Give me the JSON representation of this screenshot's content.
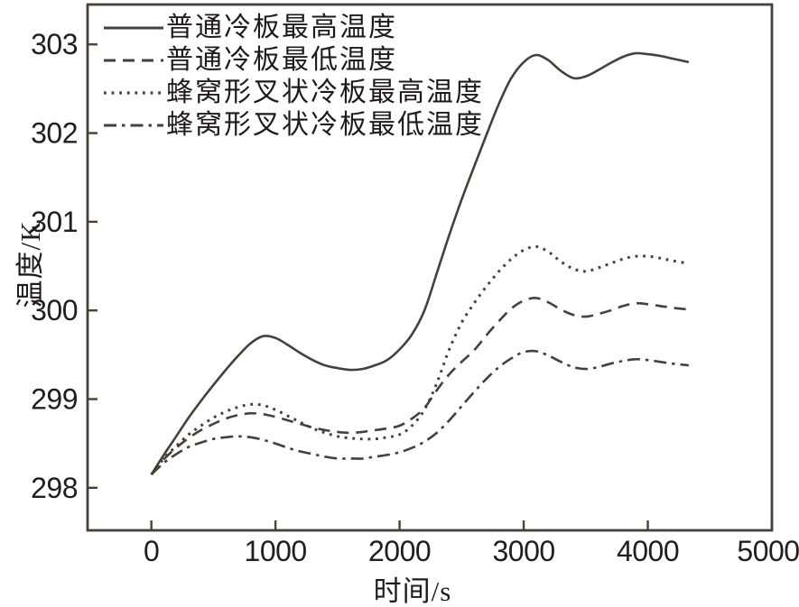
{
  "figure": {
    "background": "#ffffff",
    "line_color": "#474039",
    "text_color": "#221e1b"
  },
  "chart_data": {
    "type": "line",
    "title": "",
    "xlabel": "时间/s",
    "ylabel": "温度/K",
    "xlim": [
      -514,
      5000
    ],
    "ylim": [
      297.52,
      303.45
    ],
    "x_ticks": [
      0,
      1000,
      2000,
      3000,
      4000,
      5000
    ],
    "y_ticks": [
      298,
      299,
      300,
      301,
      302,
      303
    ],
    "grid": false,
    "legend_position": "upper-left",
    "series": [
      {
        "name": "普通冷板最高温度",
        "style": "solid",
        "points": [
          [
            0,
            298.15
          ],
          [
            100,
            298.37
          ],
          [
            200,
            298.58
          ],
          [
            300,
            298.79
          ],
          [
            400,
            298.98
          ],
          [
            500,
            299.16
          ],
          [
            600,
            299.33
          ],
          [
            700,
            299.49
          ],
          [
            800,
            299.63
          ],
          [
            900,
            299.71
          ],
          [
            1000,
            299.69
          ],
          [
            1100,
            299.61
          ],
          [
            1200,
            299.52
          ],
          [
            1300,
            299.44
          ],
          [
            1400,
            299.38
          ],
          [
            1500,
            299.35
          ],
          [
            1600,
            299.33
          ],
          [
            1700,
            299.34
          ],
          [
            1800,
            299.38
          ],
          [
            1900,
            299.44
          ],
          [
            2000,
            299.56
          ],
          [
            2100,
            299.73
          ],
          [
            2200,
            300.0
          ],
          [
            2300,
            300.42
          ],
          [
            2400,
            300.85
          ],
          [
            2500,
            301.25
          ],
          [
            2600,
            301.62
          ],
          [
            2700,
            301.98
          ],
          [
            2800,
            302.33
          ],
          [
            2900,
            302.62
          ],
          [
            3000,
            302.8
          ],
          [
            3100,
            302.88
          ],
          [
            3200,
            302.82
          ],
          [
            3300,
            302.7
          ],
          [
            3400,
            302.62
          ],
          [
            3500,
            302.64
          ],
          [
            3600,
            302.71
          ],
          [
            3700,
            302.79
          ],
          [
            3800,
            302.86
          ],
          [
            3900,
            302.9
          ],
          [
            4000,
            302.89
          ],
          [
            4100,
            302.87
          ],
          [
            4200,
            302.84
          ],
          [
            4330,
            302.8
          ]
        ]
      },
      {
        "name": "普通冷板最低温度",
        "style": "dashed",
        "points": [
          [
            0,
            298.15
          ],
          [
            100,
            298.32
          ],
          [
            200,
            298.45
          ],
          [
            300,
            298.56
          ],
          [
            400,
            298.65
          ],
          [
            500,
            298.72
          ],
          [
            600,
            298.78
          ],
          [
            700,
            298.82
          ],
          [
            800,
            298.84
          ],
          [
            900,
            298.83
          ],
          [
            1000,
            298.8
          ],
          [
            1100,
            298.76
          ],
          [
            1200,
            298.72
          ],
          [
            1300,
            298.68
          ],
          [
            1400,
            298.65
          ],
          [
            1500,
            298.63
          ],
          [
            1600,
            298.62
          ],
          [
            1700,
            298.63
          ],
          [
            1800,
            298.65
          ],
          [
            1900,
            298.67
          ],
          [
            2000,
            298.7
          ],
          [
            2100,
            298.78
          ],
          [
            2200,
            298.9
          ],
          [
            2300,
            299.1
          ],
          [
            2400,
            299.28
          ],
          [
            2500,
            299.42
          ],
          [
            2600,
            299.55
          ],
          [
            2700,
            299.72
          ],
          [
            2800,
            299.88
          ],
          [
            2900,
            300.02
          ],
          [
            3000,
            300.11
          ],
          [
            3100,
            300.14
          ],
          [
            3200,
            300.09
          ],
          [
            3300,
            300.01
          ],
          [
            3400,
            299.95
          ],
          [
            3500,
            299.93
          ],
          [
            3600,
            299.96
          ],
          [
            3700,
            300.0
          ],
          [
            3800,
            300.05
          ],
          [
            3900,
            300.08
          ],
          [
            4000,
            300.07
          ],
          [
            4100,
            300.05
          ],
          [
            4200,
            300.03
          ],
          [
            4330,
            300.01
          ]
        ]
      },
      {
        "name": "蜂窝形叉状冷板最高温度",
        "style": "dotted",
        "points": [
          [
            0,
            298.15
          ],
          [
            100,
            298.33
          ],
          [
            200,
            298.47
          ],
          [
            300,
            298.6
          ],
          [
            400,
            298.7
          ],
          [
            500,
            298.79
          ],
          [
            600,
            298.86
          ],
          [
            700,
            298.91
          ],
          [
            800,
            298.94
          ],
          [
            900,
            298.93
          ],
          [
            1000,
            298.88
          ],
          [
            1100,
            298.81
          ],
          [
            1200,
            298.74
          ],
          [
            1300,
            298.67
          ],
          [
            1400,
            298.62
          ],
          [
            1500,
            298.58
          ],
          [
            1600,
            298.56
          ],
          [
            1700,
            298.55
          ],
          [
            1800,
            298.55
          ],
          [
            1900,
            298.57
          ],
          [
            2000,
            298.6
          ],
          [
            2100,
            298.7
          ],
          [
            2200,
            298.88
          ],
          [
            2300,
            299.18
          ],
          [
            2400,
            299.56
          ],
          [
            2500,
            299.86
          ],
          [
            2600,
            300.08
          ],
          [
            2700,
            300.27
          ],
          [
            2800,
            300.44
          ],
          [
            2900,
            300.58
          ],
          [
            3000,
            300.68
          ],
          [
            3100,
            300.72
          ],
          [
            3200,
            300.66
          ],
          [
            3300,
            300.55
          ],
          [
            3400,
            300.47
          ],
          [
            3500,
            300.44
          ],
          [
            3600,
            300.48
          ],
          [
            3700,
            300.53
          ],
          [
            3800,
            300.58
          ],
          [
            3900,
            300.61
          ],
          [
            4000,
            300.61
          ],
          [
            4100,
            300.59
          ],
          [
            4200,
            300.56
          ],
          [
            4330,
            300.53
          ]
        ]
      },
      {
        "name": "蜂窝形叉状冷板最低温度",
        "style": "dashdot",
        "points": [
          [
            0,
            298.15
          ],
          [
            100,
            298.28
          ],
          [
            200,
            298.38
          ],
          [
            300,
            298.46
          ],
          [
            400,
            298.51
          ],
          [
            500,
            298.55
          ],
          [
            600,
            298.57
          ],
          [
            700,
            298.58
          ],
          [
            800,
            298.57
          ],
          [
            900,
            298.54
          ],
          [
            1000,
            298.5
          ],
          [
            1100,
            298.45
          ],
          [
            1200,
            298.41
          ],
          [
            1300,
            298.38
          ],
          [
            1400,
            298.35
          ],
          [
            1500,
            298.33
          ],
          [
            1600,
            298.33
          ],
          [
            1700,
            298.33
          ],
          [
            1800,
            298.35
          ],
          [
            1900,
            298.37
          ],
          [
            2000,
            298.4
          ],
          [
            2100,
            298.45
          ],
          [
            2200,
            298.52
          ],
          [
            2300,
            298.62
          ],
          [
            2400,
            298.76
          ],
          [
            2500,
            298.92
          ],
          [
            2600,
            299.08
          ],
          [
            2700,
            299.23
          ],
          [
            2800,
            299.36
          ],
          [
            2900,
            299.46
          ],
          [
            3000,
            299.53
          ],
          [
            3100,
            299.54
          ],
          [
            3200,
            299.49
          ],
          [
            3300,
            299.42
          ],
          [
            3400,
            299.36
          ],
          [
            3500,
            299.34
          ],
          [
            3600,
            299.36
          ],
          [
            3700,
            299.4
          ],
          [
            3800,
            299.43
          ],
          [
            3900,
            299.45
          ],
          [
            4000,
            299.44
          ],
          [
            4100,
            299.42
          ],
          [
            4200,
            299.4
          ],
          [
            4330,
            299.38
          ]
        ]
      }
    ]
  }
}
